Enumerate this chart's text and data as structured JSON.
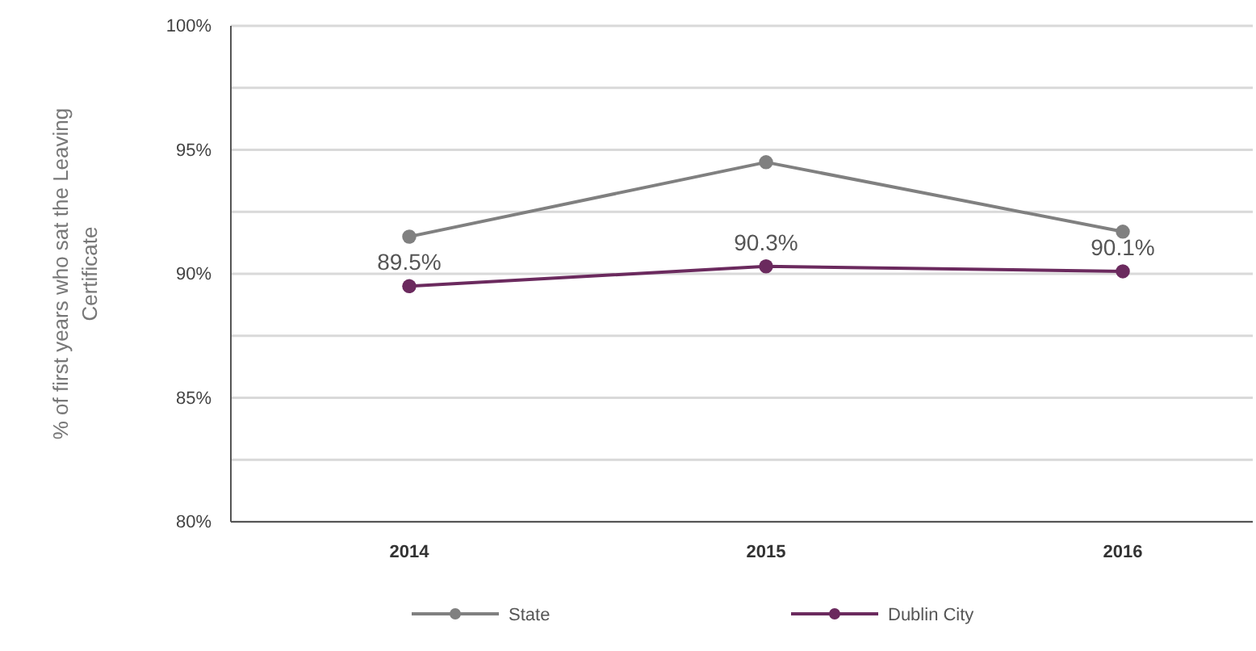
{
  "chart_data": {
    "type": "line",
    "ylabel": "% of first years who sat the Leaving Certificate",
    "categories": [
      "2014",
      "2015",
      "2016"
    ],
    "series": [
      {
        "name": "State",
        "color": "#808080",
        "values": [
          91.5,
          94.5,
          91.7
        ]
      },
      {
        "name": "Dublin City",
        "color": "#6b2a5e",
        "values": [
          89.5,
          90.3,
          90.1
        ],
        "value_labels": [
          "89.5%",
          "90.3%",
          "90.1%"
        ]
      }
    ],
    "ylim": [
      80,
      100
    ],
    "yticks": [
      {
        "value": 80,
        "label": "80%"
      },
      {
        "value": 82.5,
        "label": null
      },
      {
        "value": 85,
        "label": "85%"
      },
      {
        "value": 87.5,
        "label": null
      },
      {
        "value": 90,
        "label": "90%"
      },
      {
        "value": 92.5,
        "label": null
      },
      {
        "value": 95,
        "label": "95%"
      },
      {
        "value": 97.5,
        "label": null
      },
      {
        "value": 100,
        "label": "100%"
      }
    ],
    "grid": "y",
    "legend": "bottom",
    "marker": "circle",
    "line_style": "solid"
  }
}
